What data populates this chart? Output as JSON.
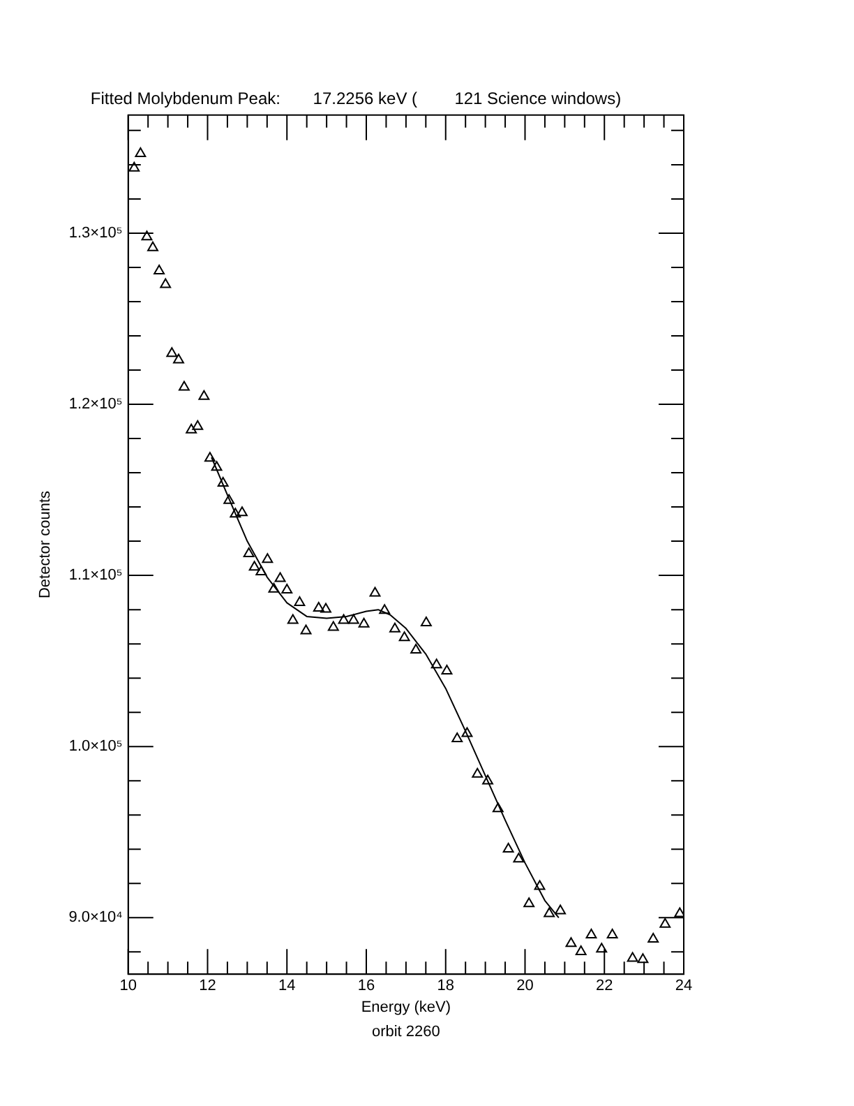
{
  "chart_data": {
    "type": "scatter",
    "title": "Fitted Molybdenum Peak:       17.2256 keV (        121 Science windows)",
    "xlabel": "Energy (keV)",
    "ylabel": "Detector counts",
    "annotations": [
      "orbit 2260"
    ],
    "xlim": [
      10,
      24
    ],
    "ylim": [
      86700,
      136900
    ],
    "xticks": [
      10,
      {
        "value": 10.5,
        "label": null
      },
      {
        "value": 11,
        "label": null
      },
      {
        "value": 11.5,
        "label": null
      },
      12,
      {
        "value": 12.5,
        "label": null
      },
      {
        "value": 13,
        "label": null
      },
      {
        "value": 13.5,
        "label": null
      },
      14,
      {
        "value": 14.5,
        "label": null
      },
      {
        "value": 15,
        "label": null
      },
      {
        "value": 15.5,
        "label": null
      },
      16,
      {
        "value": 16.5,
        "label": null
      },
      {
        "value": 17,
        "label": null
      },
      {
        "value": 17.5,
        "label": null
      },
      18,
      {
        "value": 18.5,
        "label": null
      },
      {
        "value": 19,
        "label": null
      },
      {
        "value": 19.5,
        "label": null
      },
      20,
      {
        "value": 20.5,
        "label": null
      },
      {
        "value": 21,
        "label": null
      },
      {
        "value": 21.5,
        "label": null
      },
      22,
      {
        "value": 22.5,
        "label": null
      },
      {
        "value": 23,
        "label": null
      },
      {
        "value": 23.5,
        "label": null
      },
      24
    ],
    "yticks": [
      {
        "value": 88000,
        "label": null
      },
      {
        "value": 90000,
        "label": "9.0×10⁴"
      },
      {
        "value": 92000,
        "label": null
      },
      {
        "value": 94000,
        "label": null
      },
      {
        "value": 96000,
        "label": null
      },
      {
        "value": 98000,
        "label": null
      },
      {
        "value": 100000,
        "label": "1.0×10⁵"
      },
      {
        "value": 102000,
        "label": null
      },
      {
        "value": 104000,
        "label": null
      },
      {
        "value": 106000,
        "label": null
      },
      {
        "value": 108000,
        "label": null
      },
      {
        "value": 110000,
        "label": "1.1×10⁵"
      },
      {
        "value": 112000,
        "label": null
      },
      {
        "value": 114000,
        "label": null
      },
      {
        "value": 116000,
        "label": null
      },
      {
        "value": 118000,
        "label": null
      },
      {
        "value": 120000,
        "label": "1.2×10⁵"
      },
      {
        "value": 122000,
        "label": null
      },
      {
        "value": 124000,
        "label": null
      },
      {
        "value": 126000,
        "label": null
      },
      {
        "value": 128000,
        "label": null
      },
      {
        "value": 130000,
        "label": "1.3×10⁵"
      },
      {
        "value": 132000,
        "label": null
      },
      {
        "value": 134000,
        "label": null
      },
      {
        "value": 136000,
        "label": null
      }
    ],
    "series": [
      {
        "type": "scatter",
        "color": "#000000",
        "marker": "triangle",
        "x": [
          10.15,
          10.31,
          10.47,
          10.62,
          10.78,
          10.94,
          11.1,
          11.27,
          11.41,
          11.59,
          11.75,
          11.91,
          12.06,
          12.23,
          12.39,
          12.54,
          12.7,
          12.87,
          13.04,
          13.18,
          13.35,
          13.51,
          13.67,
          13.83,
          14.0,
          14.15,
          14.32,
          14.48,
          14.8,
          14.98,
          15.17,
          15.43,
          15.68,
          15.94,
          16.22,
          16.46,
          16.72,
          16.96,
          17.25,
          17.51,
          17.77,
          18.03,
          18.29,
          18.54,
          18.8,
          19.06,
          19.32,
          19.58,
          19.84,
          20.1,
          20.37,
          20.61,
          20.89,
          21.16,
          21.41,
          21.67,
          21.93,
          22.2,
          22.71,
          22.97,
          23.23,
          23.53,
          23.9
        ],
        "values": [
          133800,
          134650,
          129780,
          129150,
          127790,
          127000,
          122970,
          122590,
          121000,
          118500,
          118710,
          120460,
          116850,
          116320,
          115390,
          114380,
          113590,
          113670,
          111270,
          110480,
          110210,
          110930,
          109200,
          109820,
          109150,
          107370,
          108410,
          106760,
          108090,
          108030,
          106970,
          107370,
          107370,
          107160,
          108960,
          107950,
          106870,
          106360,
          105640,
          107230,
          104770,
          104420,
          100460,
          100760,
          98390,
          97990,
          96370,
          94010,
          93430,
          90820,
          91830,
          90240,
          90400,
          88490,
          88010,
          88990,
          88170,
          88990,
          87630,
          87550,
          88750,
          89620,
          90240
        ]
      },
      {
        "type": "line",
        "color": "#000000",
        "marker": "none",
        "x": [
          12.1,
          12.5,
          13,
          13.5,
          14,
          14.5,
          15,
          15.5,
          16,
          16.3,
          16.6,
          17,
          17.5,
          18,
          18.5,
          19,
          19.5,
          20,
          20.5,
          20.85
        ],
        "values": [
          116900,
          114700,
          112000,
          109900,
          108400,
          107600,
          107500,
          107600,
          107900,
          108000,
          107700,
          106900,
          105400,
          103400,
          100900,
          98300,
          95700,
          93200,
          91000,
          90000
        ]
      }
    ]
  }
}
